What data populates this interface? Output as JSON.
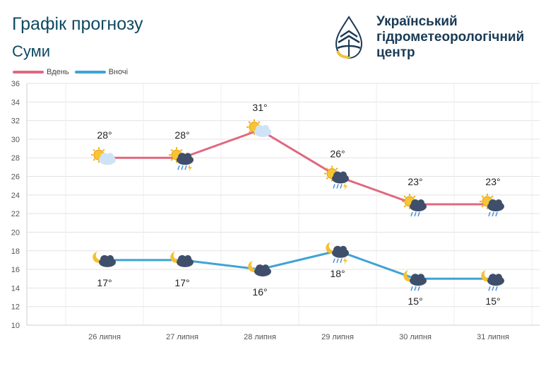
{
  "header": {
    "title": "Графік прогнозу",
    "city": "Суми",
    "org_line1": "Український",
    "org_line2": "гідрометеорологічний",
    "org_line3": "центр"
  },
  "legend": [
    {
      "name": "Вдень",
      "color": "#e0687f"
    },
    {
      "name": "Вночі",
      "color": "#3fa3d4"
    }
  ],
  "chart_data": {
    "type": "line",
    "categories": [
      "26 липня",
      "27 липня",
      "28 липня",
      "29 липня",
      "30 липня",
      "31 липня"
    ],
    "series": [
      {
        "name": "Вдень",
        "values": [
          28,
          28,
          31,
          26,
          23,
          23
        ],
        "labels": [
          "28°",
          "28°",
          "31°",
          "26°",
          "23°",
          "23°"
        ],
        "icons": [
          "sun-cloud-icon",
          "sun-cloud-thunderstorm-icon",
          "sun-cloud-icon",
          "sun-cloud-thunderstorm-icon",
          "sun-cloud-rain-icon",
          "sun-cloud-rain-icon"
        ]
      },
      {
        "name": "Вночі",
        "values": [
          17,
          17,
          16,
          18,
          15,
          15
        ],
        "labels": [
          "17°",
          "17°",
          "16°",
          "18°",
          "15°",
          "15°"
        ],
        "icons": [
          "moon-cloud-icon",
          "moon-cloud-icon",
          "moon-cloud-icon",
          "moon-cloud-thunderstorm-icon",
          "moon-cloud-rain-icon",
          "moon-cloud-rain-icon"
        ]
      }
    ],
    "yticks": [
      "10",
      "12",
      "14",
      "16",
      "18",
      "20",
      "22",
      "24",
      "26",
      "28",
      "30",
      "32",
      "34",
      "36"
    ],
    "ylim": [
      10,
      36
    ],
    "grid": true,
    "legend_position": "top-left"
  }
}
